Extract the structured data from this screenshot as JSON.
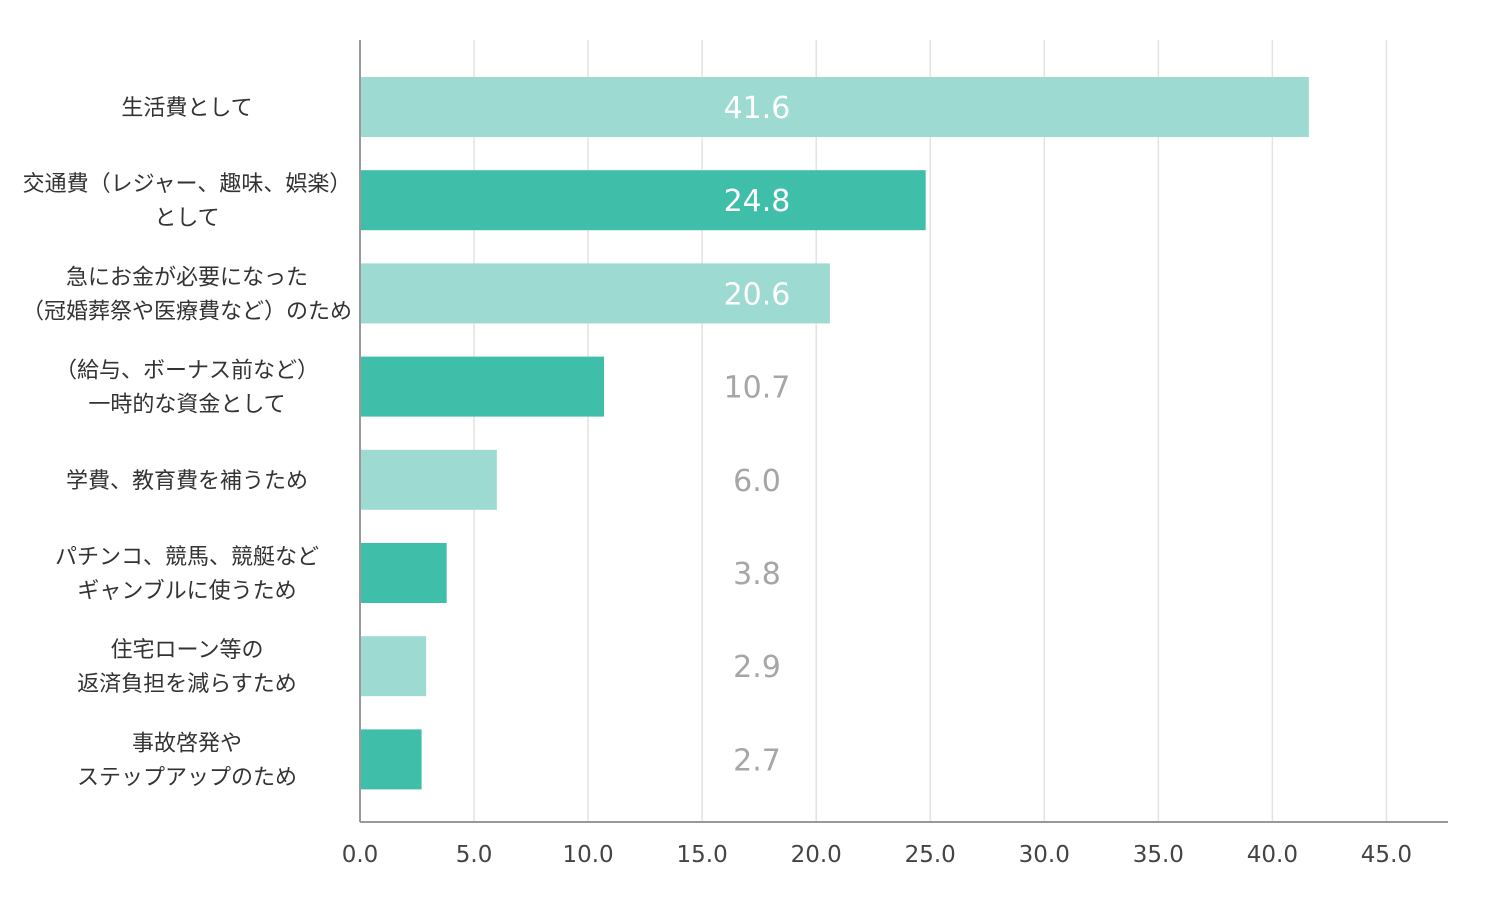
{
  "chart_data": {
    "type": "bar",
    "orientation": "horizontal",
    "categories": [
      [
        "生活費として"
      ],
      [
        "交通費（レジャー、趣味、娯楽）",
        "として"
      ],
      [
        "急にお金が必要になった",
        "（冠婚葬祭や医療費など）のため"
      ],
      [
        "（給与、ボーナス前など）",
        "一時的な資金として"
      ],
      [
        "学費、教育費を補うため"
      ],
      [
        "パチンコ、競馬、競艇など",
        "ギャンブルに使うため"
      ],
      [
        "住宅ローン等の",
        "返済負担を減らすため"
      ],
      [
        "事故啓発や",
        "ステップアップのため"
      ]
    ],
    "values": [
      41.6,
      24.8,
      20.6,
      10.7,
      6.0,
      3.8,
      2.9,
      2.7
    ],
    "value_labels": [
      "41.6",
      "24.8",
      "20.6",
      "10.7",
      "6.0",
      "3.8",
      "2.9",
      "2.7"
    ],
    "x_ticks": [
      "0.0",
      "5.0",
      "10.0",
      "15.0",
      "20.0",
      "25.0",
      "30.0",
      "35.0",
      "40.0",
      "45.0"
    ],
    "xlim": [
      0,
      47.7
    ],
    "grid": true,
    "title": "",
    "xlabel": "",
    "ylabel": "",
    "colors": {
      "bar_light": "#9ddad2",
      "bar_dark": "#3fbfa9",
      "grid": "#e3e3e3",
      "axis": "#999999",
      "label_inside": "#ffffff",
      "label_outside": "#a6a6a6"
    }
  }
}
